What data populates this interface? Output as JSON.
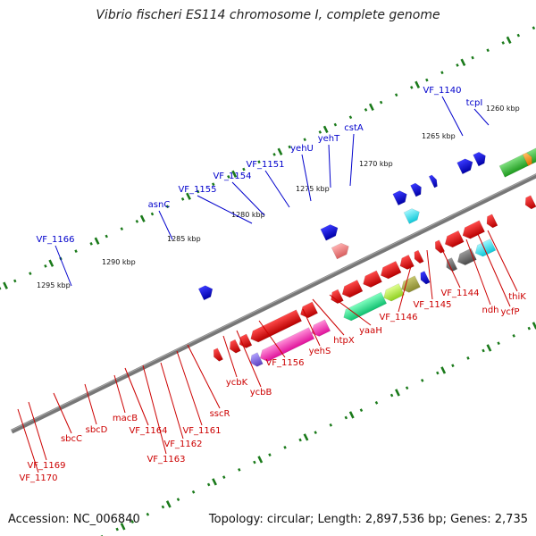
{
  "title": "Vibrio fischeri ES114 chromosome I, complete genome",
  "footer": {
    "accession": "Accession: NC_006840",
    "topology": "Topology: circular; Length: 2,897,536 bp; Genes: 2,735"
  },
  "kbp_labels": [
    "1260 kbp",
    "1265 kbp",
    "1270 kbp",
    "1275 kbp",
    "1280 kbp",
    "1285 kbp",
    "1290 kbp",
    "1295 kbp"
  ],
  "forward_gene_labels": [
    "tcpI",
    "VF_1140",
    "cstA",
    "yehT",
    "yehU",
    "VF_1151",
    "VF_1154",
    "VF_1155",
    "asnC",
    "VF_1166"
  ],
  "reverse_gene_labels": [
    "thiK",
    "ycfP",
    "ndh",
    "VF_1144",
    "VF_1145",
    "VF_1146",
    "yaaH",
    "htpX",
    "yehS",
    "VF_1156",
    "ycbB",
    "ycbK",
    "sscR",
    "VF_1161",
    "VF_1162",
    "VF_1163",
    "VF_1164",
    "macB",
    "sbcD",
    "sbcC",
    "VF_1169",
    "VF_1170"
  ],
  "colors": {
    "backbone": "#777777",
    "forward_label": "#0000cc",
    "reverse_label": "#cc0000",
    "tick": "#1a7a1a",
    "gene_red": "#ee0000",
    "gene_blue": "#0000ee"
  }
}
